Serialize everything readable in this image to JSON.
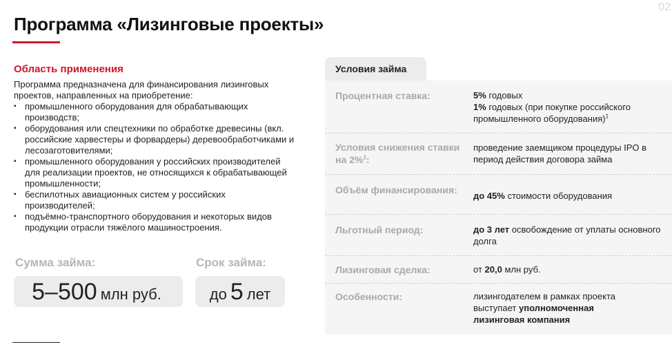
{
  "page_number": "02",
  "title": "Программа «Лизинговые проекты»",
  "area": {
    "heading": "Область применения",
    "intro": "Программа предназначена для финансирования лизинговых проектов, направленных на приобретение:",
    "items": [
      "промышленного оборудования для обрабатывающих производств;",
      "оборудования или спецтехники по обработке древесины (вкл. российские харвестеры и форвардеры) деревообработчиками и лесозаготовителями;",
      "промышленного оборудования у российских производителей для реализации проектов, не относящихся к обрабатывающей промышленности;",
      "беспилотных авиационных систем у российских производителей;",
      "подъёмно-транспортного оборудования и некоторых видов продукции отрасли тяжёлого машиностроения."
    ]
  },
  "loan_amount": {
    "label": "Сумма займа:",
    "value": "5–500",
    "unit": "млн руб."
  },
  "loan_term": {
    "label": "Срок займа:",
    "prefix": "до",
    "value": "5",
    "unit": "лет"
  },
  "conditions": {
    "tab": "Условия займа",
    "rows": [
      {
        "label": "Процентная ставка:",
        "line1_bold": "5%",
        "line1_rest": " годовых",
        "line2_bold": "1%",
        "line2_rest": " годовых (при покупке российского промышленного оборудования)",
        "line2_sup": "1"
      },
      {
        "label": "Условия снижения ставки на 2%",
        "label_sup": "2",
        "label_tail": ":",
        "value": "проведение заемщиком процедуры IPO в период действия договора займа"
      },
      {
        "label": "Объём финансирования:",
        "value_bold": "до 45%",
        "value_rest": " стоимости оборудования"
      },
      {
        "label": "Льготный период:",
        "value_bold": "до 3 лет",
        "value_rest": " освобождение от уплаты основного долга"
      },
      {
        "label": "Лизинговая сделка:",
        "value_pre": "от ",
        "value_bold": "20,0",
        "value_rest": " млн руб."
      },
      {
        "label": "Особенности:",
        "value_rest": "лизингодателем в рамках проекта выступает ",
        "value_bold": "уполномоченная лизинговая компания"
      }
    ]
  },
  "colors": {
    "accent": "#d1162a",
    "panel": "#f5f5f5",
    "tab": "#ececec",
    "muted_label": "#a9a9a9"
  }
}
